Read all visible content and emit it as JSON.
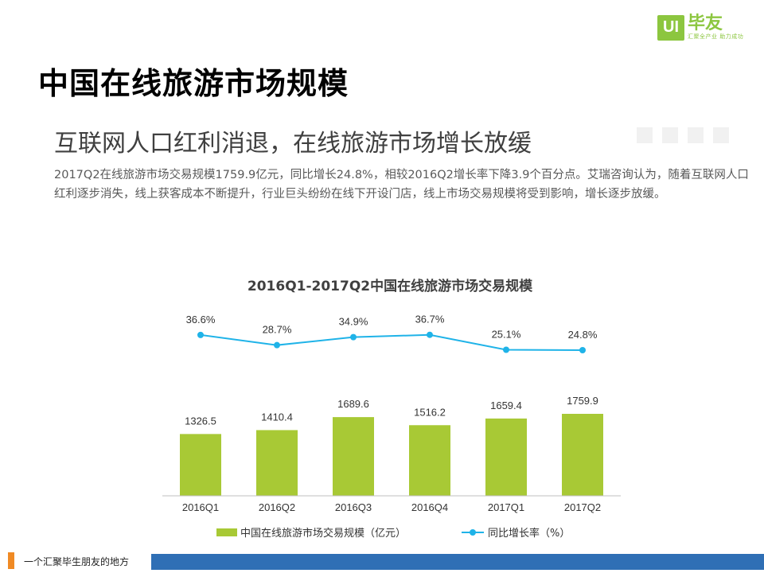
{
  "logo": {
    "mark": "UI",
    "name": "毕友",
    "tagline": "汇聚全产业  助力成功"
  },
  "header": {
    "title": "中国在线旅游市场规模",
    "subtitle": "互联网人口红利消退，在线旅游市场增长放缓"
  },
  "description": "2017Q2在线旅游市场交易规模1759.9亿元，同比增长24.8%，相较2016Q2增长率下降3.9个百分点。艾瑞咨询认为，随着互联网人口红利逐步消失，线上获客成本不断提升，行业巨头纷纷在线下开设门店，线上市场交易规模将受到影响，增长逐步放缓。",
  "chart_data": {
    "type": "bar",
    "title": "2016Q1-2017Q2中国在线旅游市场交易规模",
    "categories": [
      "2016Q1",
      "2016Q2",
      "2016Q3",
      "2016Q4",
      "2017Q1",
      "2017Q2"
    ],
    "series": [
      {
        "name": "中国在线旅游市场交易规模（亿元）",
        "type": "bar",
        "values": [
          1326.5,
          1410.4,
          1689.6,
          1516.2,
          1659.4,
          1759.9
        ],
        "labels": [
          "1326.5",
          "1410.4",
          "1689.6",
          "1516.2",
          "1659.4",
          "1759.9"
        ],
        "color": "#a8c935"
      },
      {
        "name": "同比增长率（%）",
        "type": "line",
        "values": [
          36.6,
          28.7,
          34.9,
          36.7,
          25.1,
          24.8
        ],
        "labels": [
          "36.6%",
          "28.7%",
          "34.9%",
          "36.7%",
          "25.1%",
          "24.8%"
        ],
        "color": "#1fb3e8"
      }
    ],
    "grid": false,
    "legend_position": "bottom"
  },
  "footer": {
    "text": "一个汇聚毕生朋友的地方"
  }
}
